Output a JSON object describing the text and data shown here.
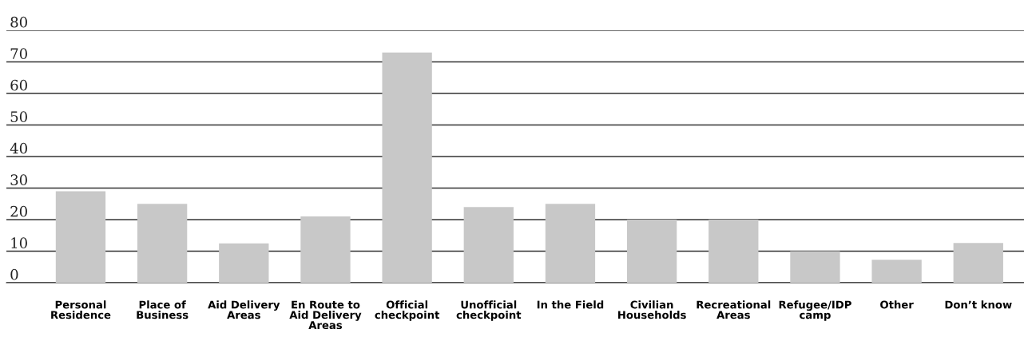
{
  "chart_data": {
    "type": "bar",
    "categories": [
      "Personal Residence",
      "Place of Business",
      "Aid Delivery Areas",
      "En Route to Aid Delivery Areas",
      "Official checkpoint",
      "Unofficial checkpoint",
      "In the Field",
      "Civilian Households",
      "Recreational Areas",
      "Refugee/IDP camp",
      "Other",
      "Don’t know"
    ],
    "values": [
      29,
      25,
      12.5,
      21,
      73,
      24,
      25,
      20,
      20,
      10,
      7.3,
      12.6
    ],
    "color": "#c8c8c8",
    "ylim": [
      0,
      80
    ],
    "yticks": [
      0,
      10,
      20,
      30,
      40,
      50,
      60,
      70,
      80
    ],
    "grid": "y"
  }
}
